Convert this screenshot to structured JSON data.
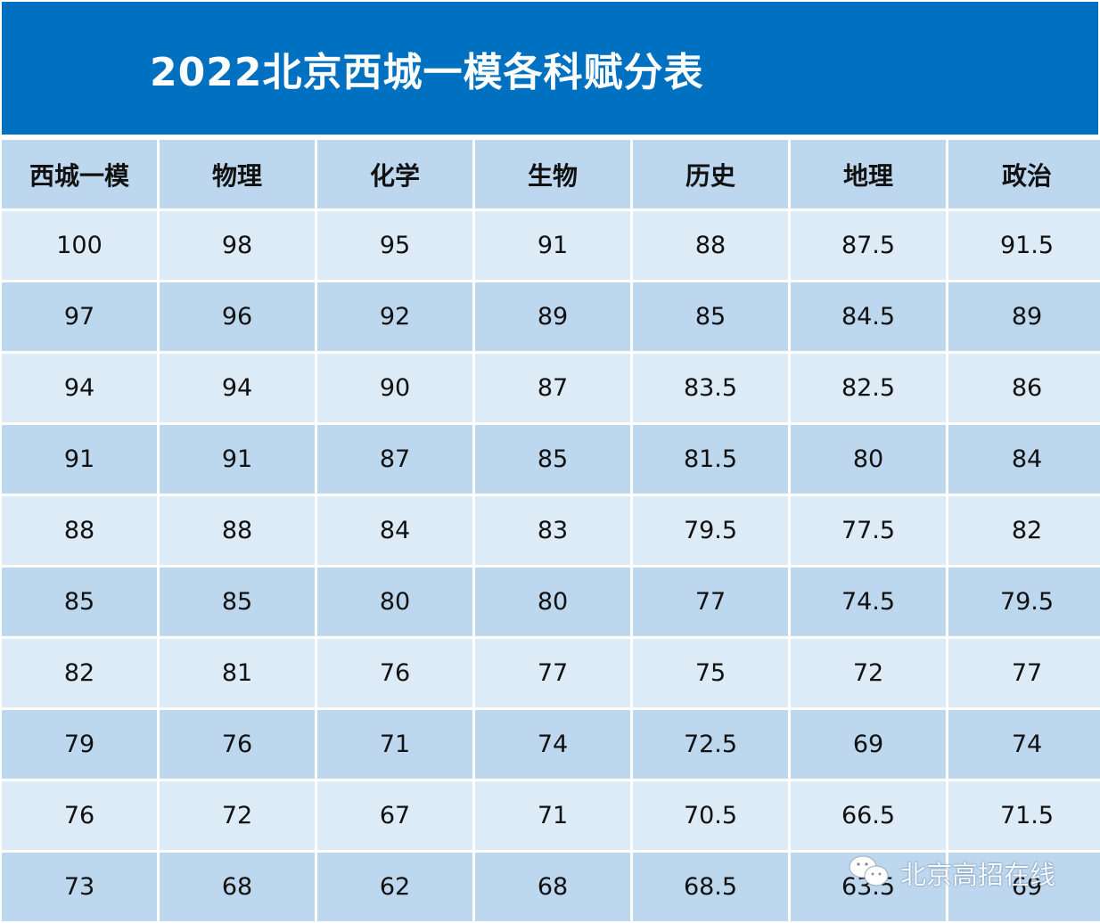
{
  "title": "2022北京西城一模各科赋分表",
  "table": {
    "headers": [
      "西城一模",
      "物理",
      "化学",
      "生物",
      "历史",
      "地理",
      "政治"
    ],
    "rows": [
      [
        "100",
        "98",
        "95",
        "91",
        "88",
        "87.5",
        "91.5"
      ],
      [
        "97",
        "96",
        "92",
        "89",
        "85",
        "84.5",
        "89"
      ],
      [
        "94",
        "94",
        "90",
        "87",
        "83.5",
        "82.5",
        "86"
      ],
      [
        "91",
        "91",
        "87",
        "85",
        "81.5",
        "80",
        "84"
      ],
      [
        "88",
        "88",
        "84",
        "83",
        "79.5",
        "77.5",
        "82"
      ],
      [
        "85",
        "85",
        "80",
        "80",
        "77",
        "74.5",
        "79.5"
      ],
      [
        "82",
        "81",
        "76",
        "77",
        "75",
        "72",
        "77"
      ],
      [
        "79",
        "76",
        "71",
        "74",
        "72.5",
        "69",
        "74"
      ],
      [
        "76",
        "72",
        "67",
        "71",
        "70.5",
        "66.5",
        "71.5"
      ],
      [
        "73",
        "68",
        "62",
        "68",
        "68.5",
        "63.5",
        "69"
      ]
    ]
  },
  "watermark": {
    "icon": "wechat-icon",
    "text": "北京高招在线"
  },
  "colors": {
    "title_bg": "#0070c0",
    "header_bg": "#bdd7ee",
    "row_light": "#ddebf7",
    "row_dark": "#bdd7ee"
  }
}
